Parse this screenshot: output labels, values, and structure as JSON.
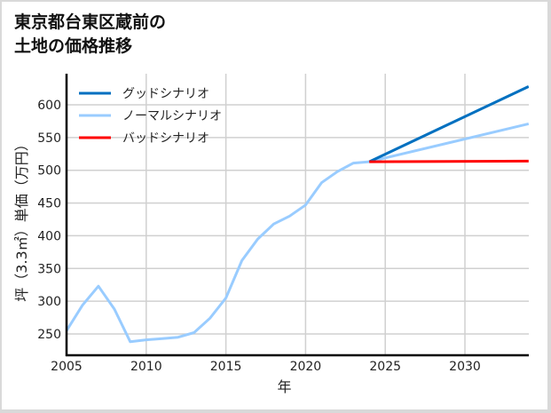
{
  "title_line1": "東京都台東区蔵前の",
  "title_line2": "土地の価格推移",
  "chart_data": {
    "type": "line",
    "title": "東京都台東区蔵前の土地の価格推移",
    "xlabel": "年",
    "ylabel": "坪（3.3㎡）単価（万円）",
    "xlim": [
      2005,
      2034
    ],
    "ylim": [
      218,
      648
    ],
    "xticks": [
      2005,
      2010,
      2015,
      2020,
      2025,
      2030
    ],
    "yticks": [
      250,
      300,
      350,
      400,
      450,
      500,
      550,
      600
    ],
    "grid": true,
    "legend_position": "upper left",
    "series": [
      {
        "name": "グッドシナリオ",
        "color": "#0070c0",
        "x": [
          2024,
          2034
        ],
        "values": [
          513,
          628
        ]
      },
      {
        "name": "ノーマルシナリオ",
        "color": "#99ccff",
        "x": [
          2005,
          2006,
          2007,
          2008,
          2009,
          2010,
          2011,
          2012,
          2013,
          2014,
          2015,
          2016,
          2017,
          2018,
          2019,
          2020,
          2021,
          2022,
          2023,
          2024,
          2034
        ],
        "values": [
          255,
          294,
          323,
          288,
          238,
          241,
          243,
          245,
          252,
          274,
          305,
          362,
          395,
          418,
          430,
          447,
          481,
          498,
          511,
          513,
          571
        ]
      },
      {
        "name": "バッドシナリオ",
        "color": "#ff0000",
        "x": [
          2024,
          2034
        ],
        "values": [
          513,
          514
        ]
      }
    ]
  }
}
